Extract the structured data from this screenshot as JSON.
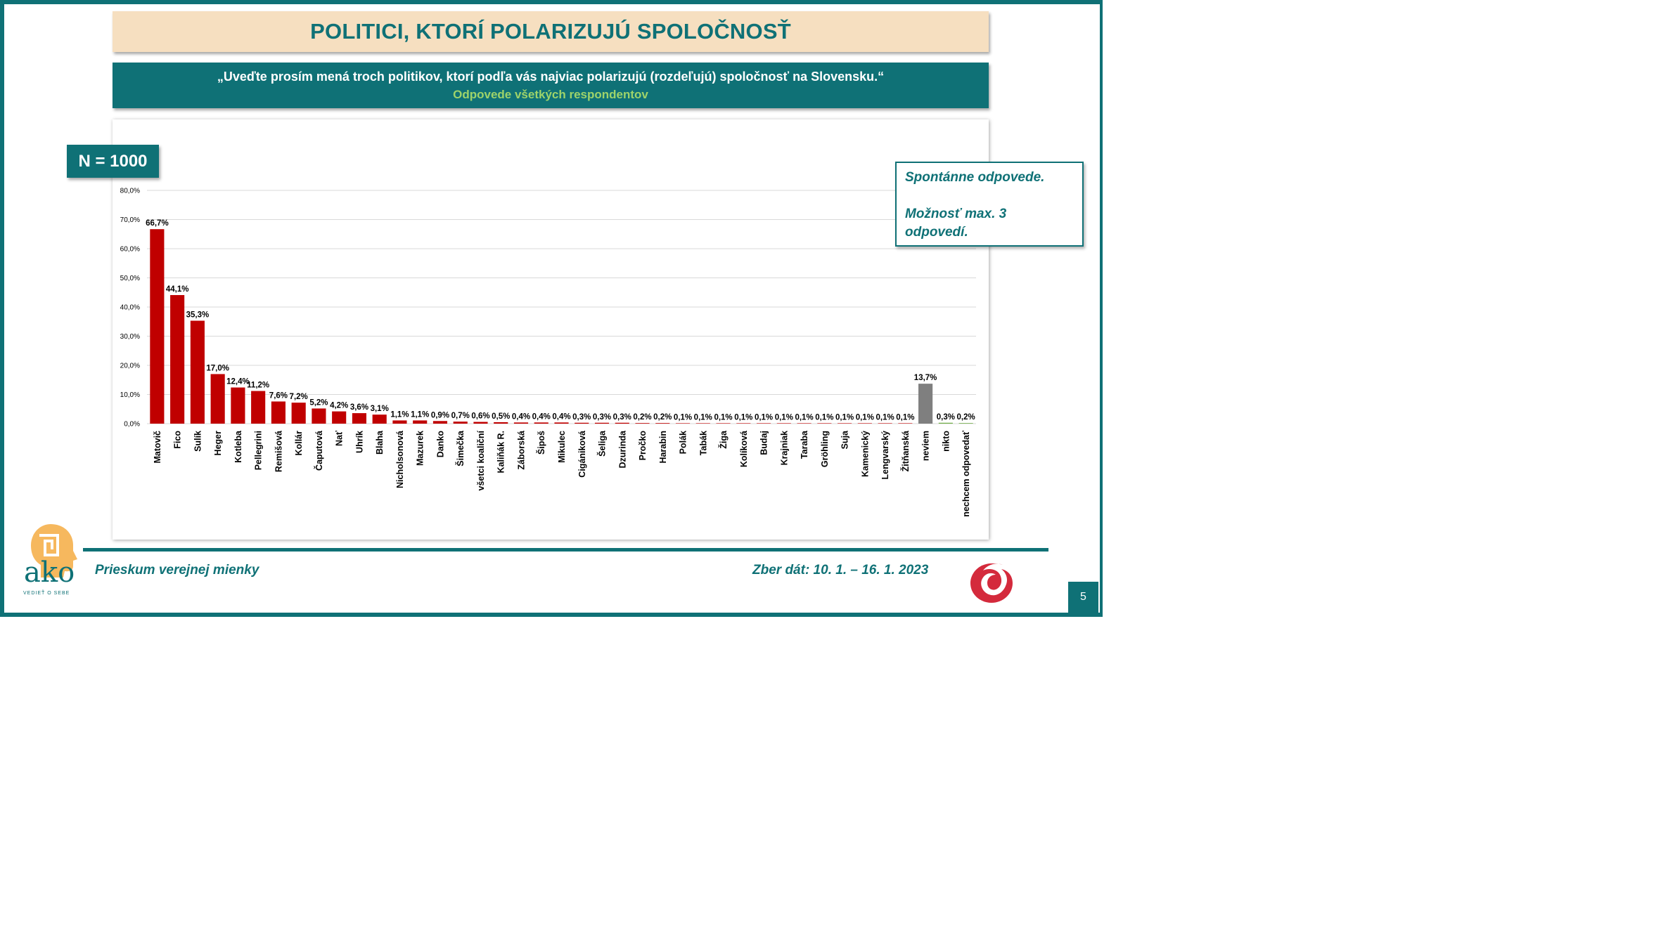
{
  "title": "POLITICI, KTORÍ POLARIZUJÚ SPOLOČNOSŤ",
  "question": "„Uveďte prosím mená troch politikov, ktorí podľa vás najviac polarizujú (rozdeľujú) spoločnosť na Slovensku.“",
  "subtitle": "Odpovede všetkých respondentov",
  "sample": "N = 1000",
  "note": {
    "line1": "Spontánne odpovede.",
    "line2": "Možnosť max. 3",
    "line3": "odpovedí."
  },
  "footer": {
    "left": "Prieskum verejnej mienky",
    "right": "Zber dát: 10. 1. – 16. 1. 2023",
    "page": "5"
  },
  "logo": {
    "name": "ako",
    "tagline": "VEDIEŤ O SEBE",
    "trademark": "®"
  },
  "colors": {
    "teal": "#0f7176",
    "red_bar": "#c00000",
    "grey_bar": "#7f7f7f",
    "green_bar": "#70ad47",
    "title_bg": "#f6dfc0",
    "subtitle_green": "#9ed36a"
  },
  "chart_data": {
    "type": "bar",
    "ylim": [
      0,
      80
    ],
    "yticks": [
      "0,0%",
      "10,0%",
      "20,0%",
      "30,0%",
      "40,0%",
      "50,0%",
      "60,0%",
      "70,0%",
      "80,0%"
    ],
    "ytick_values": [
      0,
      10,
      20,
      30,
      40,
      50,
      60,
      70,
      80
    ],
    "grid": true,
    "categories": [
      "Matovič",
      "Fico",
      "Sulík",
      "Heger",
      "Kotleba",
      "Pellegrini",
      "Remišová",
      "Kollár",
      "Čaputová",
      "Nať",
      "Uhrík",
      "Blaha",
      "Nicholsonová",
      "Mazurek",
      "Danko",
      "Šimečka",
      "všetci koaliční",
      "Kaliňák R.",
      "Záborská",
      "Šipoš",
      "Mikulec",
      "Cigániková",
      "Šeliga",
      "Dzurinda",
      "Pročko",
      "Harabin",
      "Polák",
      "Tabák",
      "Žiga",
      "Kolíková",
      "Budaj",
      "Krajniak",
      "Taraba",
      "Gröhling",
      "Suja",
      "Kamenický",
      "Lengvarský",
      "Žitňanská",
      "neviem",
      "nikto",
      "nechcem odpovedať"
    ],
    "values": [
      66.7,
      44.1,
      35.3,
      17.0,
      12.4,
      11.2,
      7.6,
      7.2,
      5.2,
      4.2,
      3.6,
      3.1,
      1.1,
      1.1,
      0.9,
      0.7,
      0.6,
      0.5,
      0.4,
      0.4,
      0.4,
      0.3,
      0.3,
      0.3,
      0.2,
      0.2,
      0.1,
      0.1,
      0.1,
      0.1,
      0.1,
      0.1,
      0.1,
      0.1,
      0.1,
      0.1,
      0.1,
      0.1,
      13.7,
      0.3,
      0.2
    ],
    "labels": [
      "66,7%",
      "44,1%",
      "35,3%",
      "17,0%",
      "12,4%",
      "11,2%",
      "7,6%",
      "7,2%",
      "5,2%",
      "4,2%",
      "3,6%",
      "3,1%",
      "1,1%",
      "1,1%",
      "0,9%",
      "0,7%",
      "0,6%",
      "0,5%",
      "0,4%",
      "0,4%",
      "0,4%",
      "0,3%",
      "0,3%",
      "0,3%",
      "0,2%",
      "0,2%",
      "0,1%",
      "0,1%",
      "0,1%",
      "0,1%",
      "0,1%",
      "0,1%",
      "0,1%",
      "0,1%",
      "0,1%",
      "0,1%",
      "0,1%",
      "0,1%",
      "13,7%",
      "0,3%",
      "0,2%"
    ],
    "bar_colors": [
      "red",
      "red",
      "red",
      "red",
      "red",
      "red",
      "red",
      "red",
      "red",
      "red",
      "red",
      "red",
      "red",
      "red",
      "red",
      "red",
      "red",
      "red",
      "red",
      "red",
      "red",
      "red",
      "red",
      "red",
      "red",
      "red",
      "red",
      "red",
      "red",
      "red",
      "red",
      "red",
      "red",
      "red",
      "red",
      "red",
      "red",
      "red",
      "grey",
      "green",
      "green"
    ]
  }
}
